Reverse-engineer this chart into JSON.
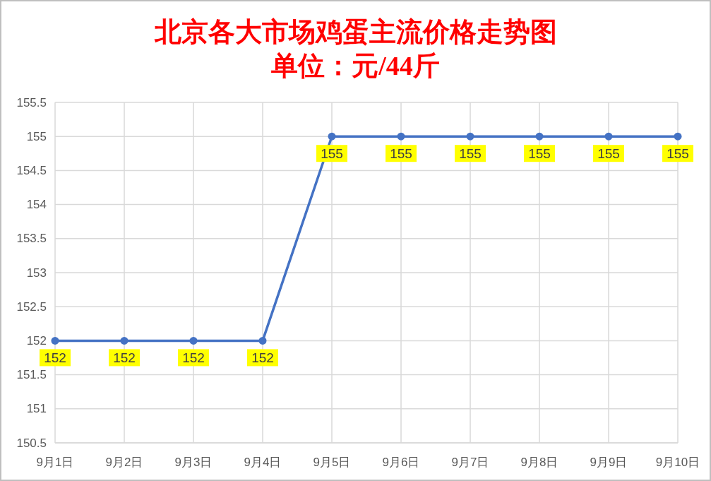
{
  "chart_data": {
    "type": "line",
    "title": "北京各大市场鸡蛋主流价格走势图",
    "subtitle": "单位：元/44斤",
    "categories": [
      "9月1日",
      "9月2日",
      "9月3日",
      "9月4日",
      "9月5日",
      "9月6日",
      "9月7日",
      "9月8日",
      "9月9日",
      "9月10日"
    ],
    "series": [
      {
        "color": "#4472c4",
        "values": [
          152,
          152,
          152,
          152,
          155,
          155,
          155,
          155,
          155,
          155
        ]
      }
    ],
    "ylim": [
      150.5,
      155.5
    ],
    "yticks": [
      150.5,
      151,
      151.5,
      152,
      152.5,
      153,
      153.5,
      154,
      154.5,
      155,
      155.5
    ],
    "grid": true,
    "marker": "circle",
    "line_style": "solid",
    "data_labels": true
  }
}
